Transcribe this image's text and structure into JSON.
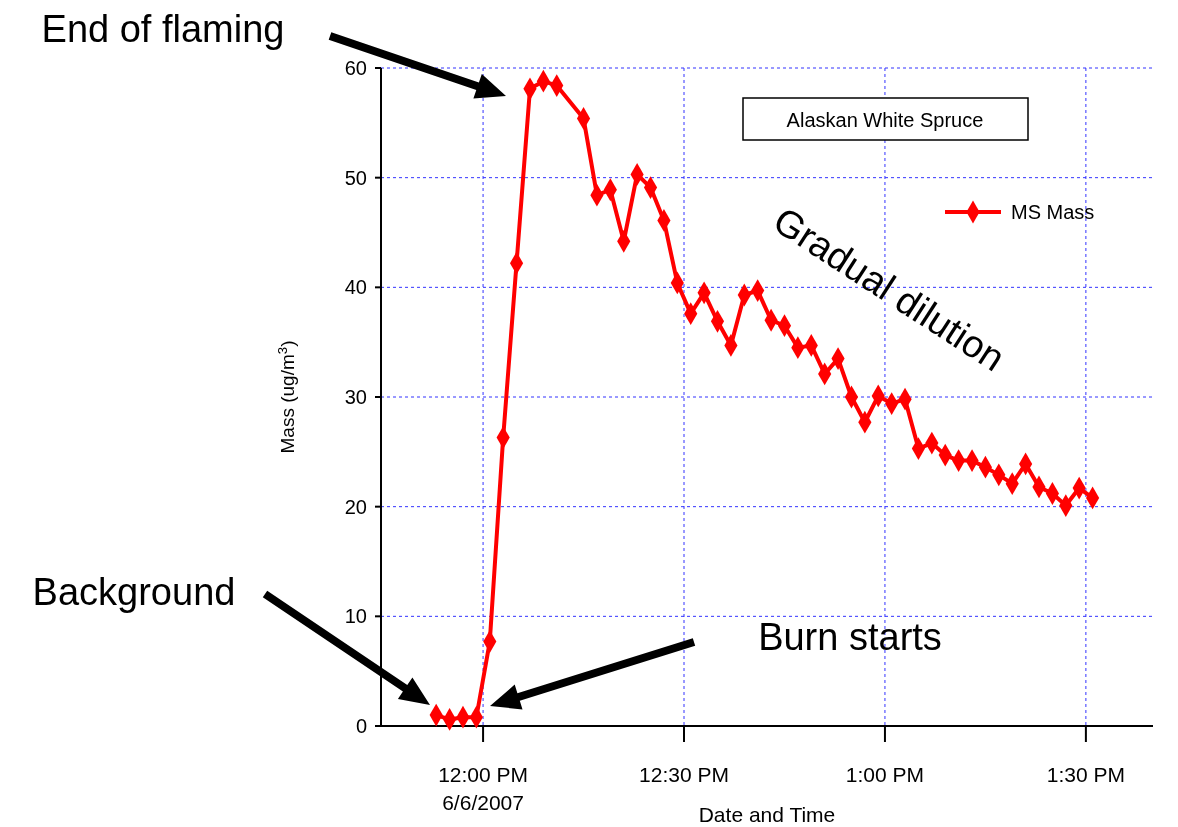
{
  "chart_data": {
    "type": "line",
    "title": "Alaskan White Spruce",
    "xlabel": "Date and Time",
    "ylabel": "Mass (ug/m$^{3}$)",
    "x": [
      11.8833,
      11.9167,
      11.95,
      11.9833,
      12.0167,
      12.05,
      12.0833,
      12.1167,
      12.15,
      12.1833,
      12.25,
      12.2833,
      12.3167,
      12.35,
      12.3833,
      12.4167,
      12.45,
      12.4833,
      12.5167,
      12.55,
      12.5833,
      12.6167,
      12.65,
      12.6833,
      12.7167,
      12.75,
      12.7833,
      12.8167,
      12.85,
      12.8833,
      12.9167,
      12.95,
      12.9833,
      13.0167,
      13.05,
      13.0833,
      13.1167,
      13.15,
      13.1833,
      13.2167,
      13.25,
      13.2833,
      13.3167,
      13.35,
      13.3833,
      13.4167,
      13.45,
      13.4833,
      13.5167
    ],
    "series": [
      {
        "name": "MS Mass",
        "color": "#ff0000",
        "values": [
          1.0,
          0.6,
          0.8,
          0.8,
          7.7,
          26.3,
          42.2,
          58.1,
          58.8,
          58.4,
          55.4,
          48.4,
          48.9,
          44.2,
          50.3,
          49.1,
          46.1,
          40.4,
          37.6,
          39.5,
          36.9,
          34.7,
          39.3,
          39.7,
          37.0,
          36.5,
          34.5,
          34.7,
          32.1,
          33.5,
          30.0,
          27.7,
          30.1,
          29.4,
          29.8,
          25.3,
          25.8,
          24.7,
          24.2,
          24.2,
          23.6,
          22.9,
          22.1,
          23.9,
          21.8,
          21.2,
          20.1,
          21.7,
          20.8
        ]
      }
    ],
    "xlim": [
      11.746,
      13.667
    ],
    "xticks": [
      {
        "value": 12,
        "label": "12:00 PM\n6/6/2007"
      },
      {
        "value": 12.5,
        "label": "12:30 PM"
      },
      {
        "value": 13,
        "label": "1:00 PM"
      },
      {
        "value": 13.5,
        "label": "1:30 PM"
      }
    ],
    "ylim": [
      0,
      60
    ],
    "yticks": [
      0,
      10,
      20,
      30,
      40,
      50,
      60
    ],
    "grid": true,
    "legend": "top right",
    "marker": "diamond",
    "line_style": "solid",
    "annotations": [
      "End of flaming",
      "Background",
      "Burn starts",
      "Gradual dilution"
    ]
  }
}
